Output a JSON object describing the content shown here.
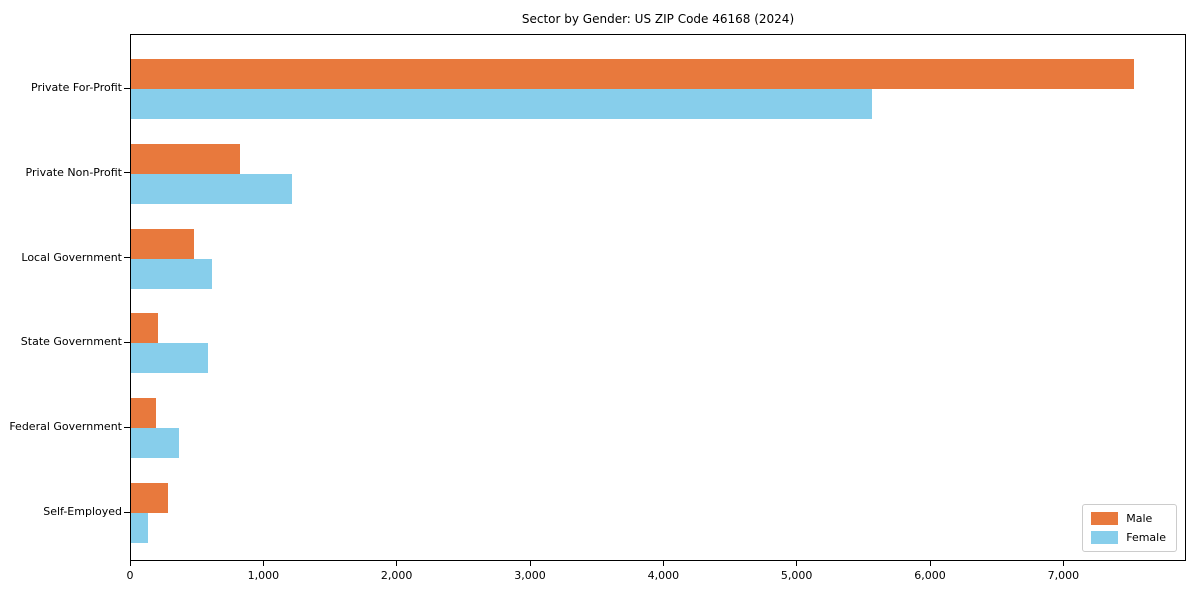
{
  "chart_data": {
    "type": "bar",
    "orientation": "horizontal",
    "title": "Sector by Gender: US ZIP Code 46168 (2024)",
    "categories": [
      "Private For-Profit",
      "Private Non-Profit",
      "Local Government",
      "State Government",
      "Federal Government",
      "Self-Employed"
    ],
    "series": [
      {
        "name": "Male",
        "color": "#E8793D",
        "values": [
          7540,
          820,
          470,
          200,
          190,
          280
        ]
      },
      {
        "name": "Female",
        "color": "#87CEEB",
        "values": [
          5570,
          1210,
          610,
          580,
          360,
          130
        ]
      }
    ],
    "xlim": [
      0,
      7920
    ],
    "x_ticks": [
      0,
      1000,
      2000,
      3000,
      4000,
      5000,
      6000,
      7000
    ],
    "xlabel": "",
    "ylabel": "",
    "grid": false,
    "legend_position": "lower right"
  }
}
